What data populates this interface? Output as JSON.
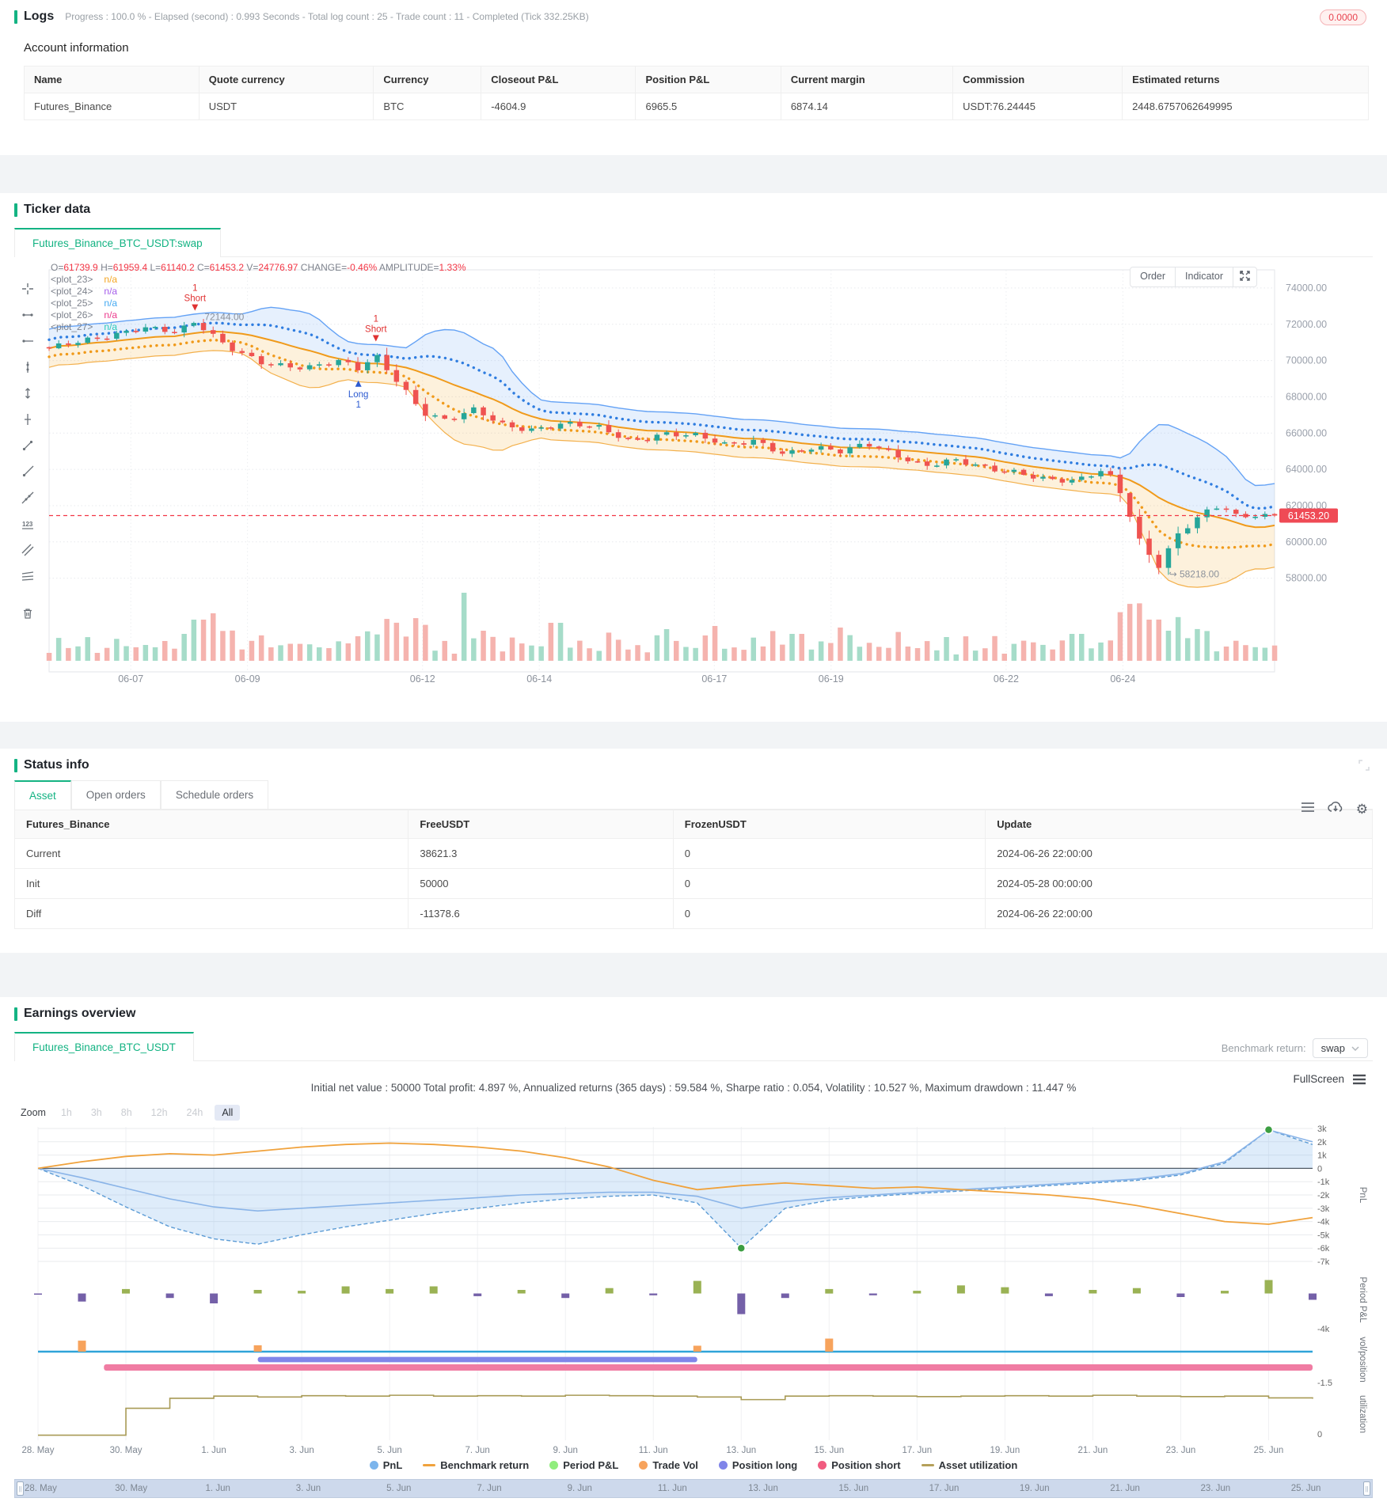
{
  "colors": {
    "accent": "#14b383",
    "red": "#f23645",
    "candle_up": "#26a69a",
    "candle_down": "#ef5350",
    "vol_up": "#a6dcc9",
    "vol_down": "#f5b3ae",
    "band_blue": "#64a2f5",
    "band_blue_fill": "rgba(100,162,245,0.16)",
    "dot_blue": "#2f7de0",
    "band_orange": "#f3b04c",
    "band_orange_fill": "rgba(245,166,35,0.16)",
    "dot_orange": "#f09a1a",
    "center_orange": "#f09a1a"
  },
  "logs": {
    "title": "Logs",
    "progress_text": "Progress : 100.0 % - Elapsed (second) : 0.993  Seconds - Total log count : 25 - Trade count : 11 - Completed (Tick 332.25KB)",
    "badge": "0.0000"
  },
  "account": {
    "title": "Account information",
    "columns": [
      "Name",
      "Quote currency",
      "Currency",
      "Closeout P&L",
      "Position P&L",
      "Current margin",
      "Commission",
      "Estimated returns"
    ],
    "rows": [
      [
        "Futures_Binance",
        "USDT",
        "BTC",
        "-4604.9",
        "6965.5",
        "6874.14",
        "USDT:76.24445",
        "2448.6757062649995"
      ]
    ]
  },
  "ticker": {
    "section_title": "Ticker data",
    "tab": "Futures_Binance_BTC_USDT:swap",
    "ohlc": [
      [
        "O=",
        "61739.9"
      ],
      [
        "H=",
        "61959.4"
      ],
      [
        "L=",
        "61140.2"
      ],
      [
        "C=",
        "61453.2"
      ],
      [
        "V=",
        "24776.97"
      ],
      [
        "CHANGE=",
        "-0.46%"
      ],
      [
        "AMPLITUDE=",
        "1.33%"
      ]
    ],
    "plots": [
      {
        "name": "<plot_23>",
        "value": "n/a",
        "color": "#f5a623"
      },
      {
        "name": "<plot_24>",
        "value": "n/a",
        "color": "#a55eea"
      },
      {
        "name": "<plot_25>",
        "value": "n/a",
        "color": "#45aaf2"
      },
      {
        "name": "<plot_26>",
        "value": "n/a",
        "color": "#eb3b8d"
      },
      {
        "name": "<plot_27>",
        "value": "n/a",
        "color": "#2bcbba"
      }
    ],
    "buttons": [
      "Order",
      "Indicator"
    ],
    "toolbar": [
      "crosshair",
      "trend-point",
      "horizontal-ray",
      "vertical-line",
      "height-ruler",
      "date-range",
      "trend-line",
      "ray-line",
      "extended-line",
      "price-note",
      "parallel-channel",
      "pattern-lines",
      "delete"
    ]
  },
  "status": {
    "section_title": "Status info",
    "tabs": [
      "Asset",
      "Open orders",
      "Schedule orders"
    ],
    "active_tab": "Asset",
    "columns": [
      "Futures_Binance",
      "FreeUSDT",
      "FrozenUSDT",
      "Update"
    ],
    "rows": [
      [
        "Current",
        "38621.3",
        "0",
        "2024-06-26 22:00:00"
      ],
      [
        "Init",
        "50000",
        "0",
        "2024-05-28 00:00:00"
      ],
      [
        "Diff",
        "-11378.6",
        "0",
        "2024-06-26 22:00:00"
      ]
    ]
  },
  "earnings": {
    "section_title": "Earnings overview",
    "tab": "Futures_Binance_BTC_USDT",
    "benchmark_label": "Benchmark return:",
    "benchmark_value": "swap",
    "stats": "Initial net value : 50000 Total profit: 4.897 %, Annualized returns (365 days) : 59.584 %, Sharpe ratio : 0.054, Volatility : 10.527 %, Maximum drawdown : 11.447 %",
    "fullscreen_label": "FullScreen",
    "zoom_label": "Zoom",
    "zoom_options": [
      "1h",
      "3h",
      "8h",
      "12h",
      "24h",
      "All"
    ],
    "zoom_active": "All",
    "legend": [
      {
        "label": "PnL",
        "color": "#7cb5ec",
        "type": "dot"
      },
      {
        "label": "Benchmark return",
        "color": "#f0a23c",
        "type": "line"
      },
      {
        "label": "Period P&L",
        "color": "#90ed7d",
        "type": "dot"
      },
      {
        "label": "Trade Vol",
        "color": "#f7a35c",
        "type": "dot"
      },
      {
        "label": "Position long",
        "color": "#8085e9",
        "type": "dot"
      },
      {
        "label": "Position short",
        "color": "#f15c80",
        "type": "dot"
      },
      {
        "label": "Asset utilization",
        "color": "#b5a05a",
        "type": "line"
      }
    ]
  },
  "chart_data": [
    {
      "id": "ticker-candles",
      "type": "candlestick-with-bands",
      "title": "Futures_Binance_BTC_USDT:swap",
      "y_ticks": [
        74000,
        72000,
        70000,
        68000,
        66000,
        64000,
        62000,
        60000,
        58000
      ],
      "x_ticks": [
        {
          "day": 7,
          "label": "06-07"
        },
        {
          "day": 9,
          "label": "06-09"
        },
        {
          "day": 12,
          "label": "06-12"
        },
        {
          "day": 14,
          "label": "06-14"
        },
        {
          "day": 17,
          "label": "06-17"
        },
        {
          "day": 19,
          "label": "06-19"
        },
        {
          "day": 22,
          "label": "06-22"
        },
        {
          "day": 24,
          "label": "06-24"
        }
      ],
      "day_range": [
        5.6,
        26.6
      ],
      "price_range": [
        75000,
        56500
      ],
      "candle_count": 128,
      "close_anchors": [
        [
          5.6,
          70600
        ],
        [
          6.5,
          71300
        ],
        [
          7.2,
          71900
        ],
        [
          7.8,
          71500
        ],
        [
          8.1,
          72050
        ],
        [
          8.6,
          70900
        ],
        [
          9.3,
          69900
        ],
        [
          10.0,
          69500
        ],
        [
          10.6,
          69950
        ],
        [
          10.9,
          69600
        ],
        [
          11.2,
          70350
        ],
        [
          11.6,
          68800
        ],
        [
          12.0,
          67100
        ],
        [
          12.4,
          66600
        ],
        [
          12.9,
          67300
        ],
        [
          13.4,
          66500
        ],
        [
          13.9,
          66200
        ],
        [
          14.4,
          66450
        ],
        [
          15.0,
          66300
        ],
        [
          15.6,
          65600
        ],
        [
          16.1,
          66000
        ],
        [
          16.7,
          65800
        ],
        [
          17.2,
          65300
        ],
        [
          17.7,
          65650
        ],
        [
          18.2,
          64900
        ],
        [
          18.7,
          65150
        ],
        [
          19.2,
          64900
        ],
        [
          19.6,
          65450
        ],
        [
          20.1,
          64900
        ],
        [
          20.6,
          64200
        ],
        [
          21.1,
          64450
        ],
        [
          21.7,
          64000
        ],
        [
          22.2,
          63900
        ],
        [
          22.7,
          63500
        ],
        [
          23.2,
          63300
        ],
        [
          23.7,
          63950
        ],
        [
          24.0,
          62500
        ],
        [
          24.3,
          60000
        ],
        [
          24.6,
          58700
        ],
        [
          24.9,
          60300
        ],
        [
          25.3,
          61400
        ],
        [
          25.7,
          61950
        ],
        [
          26.0,
          61200
        ],
        [
          26.3,
          61550
        ],
        [
          26.6,
          61453
        ]
      ],
      "wiggle": [
        130,
        90
      ],
      "current_price": 61453.2,
      "current_price_label": "61453.20",
      "low_label": "58218.00",
      "low_day": 24.6,
      "low_price": 58218,
      "high_label": "72144.00",
      "high_day": 8.1,
      "high_price": 72144,
      "markers": [
        {
          "day": 8.1,
          "text": "Short",
          "count": "1",
          "dir": "down"
        },
        {
          "day": 11.2,
          "text": "Short",
          "count": "1",
          "dir": "down"
        },
        {
          "day": 10.9,
          "text": "Long",
          "count": "1",
          "dir": "up"
        }
      ],
      "vol_spikes": [
        [
          8.15,
          52
        ],
        [
          8.45,
          60
        ],
        [
          12.75,
          86
        ],
        [
          13.05,
          38
        ],
        [
          14.3,
          48
        ],
        [
          16.2,
          40
        ],
        [
          17.0,
          44
        ],
        [
          18.4,
          34
        ],
        [
          19.15,
          42
        ],
        [
          21.0,
          30
        ],
        [
          23.2,
          34
        ],
        [
          24.5,
          52
        ],
        [
          24.8,
          38
        ]
      ]
    },
    {
      "id": "earnings-overview",
      "type": "mixed",
      "x_labels": [
        "28. May",
        "30. May",
        "1. Jun",
        "3. Jun",
        "5. Jun",
        "7. Jun",
        "9. Jun",
        "11. Jun",
        "13. Jun",
        "15. Jun",
        "17. Jun",
        "19. Jun",
        "21. Jun",
        "23. Jun",
        "25. Jun"
      ],
      "days": 30,
      "panels": [
        {
          "name": "PnL",
          "ticks": [
            "3k",
            "2k",
            "1k",
            "0",
            "-1k",
            "-2k",
            "-3k",
            "-4k",
            "-5k",
            "-6k",
            "-7k"
          ],
          "range": [
            3,
            -7
          ]
        },
        {
          "name": "Period P&L",
          "ticks": [
            "-4k"
          ],
          "range": [
            2.6,
            -4
          ]
        },
        {
          "name": "vol/position",
          "ticks": [
            "-1.5"
          ],
          "range": [
            0.75,
            -1.5
          ]
        },
        {
          "name": "utilization",
          "ticks": [
            "0"
          ],
          "range": [
            1.05,
            -0.08
          ]
        }
      ],
      "series": {
        "pnl_dashed": [
          0,
          -1.3,
          -2.9,
          -4.4,
          -5.3,
          -5.7,
          -5.0,
          -4.4,
          -3.9,
          -3.4,
          -3.0,
          -2.6,
          -2.3,
          -2.1,
          -2.0,
          -2.6,
          -6.0,
          -3.0,
          -2.4,
          -2.1,
          -1.9,
          -1.7,
          -1.5,
          -1.3,
          -1.1,
          -0.9,
          -0.5,
          0.4,
          2.9,
          1.8
        ],
        "pnl_solid": [
          0,
          -0.7,
          -1.5,
          -2.3,
          -2.9,
          -3.2,
          -3.0,
          -2.8,
          -2.6,
          -2.4,
          -2.2,
          -2.0,
          -1.9,
          -1.8,
          -1.8,
          -2.1,
          -3.0,
          -2.5,
          -2.2,
          -2.0,
          -1.8,
          -1.6,
          -1.4,
          -1.2,
          -1.0,
          -0.8,
          -0.4,
          0.5,
          2.9,
          2.0
        ],
        "benchmark": [
          0,
          0.5,
          0.9,
          1.1,
          1.0,
          1.3,
          1.6,
          1.8,
          1.9,
          1.8,
          1.6,
          1.3,
          0.8,
          0.1,
          -0.9,
          -1.6,
          -1.3,
          -1.1,
          -1.3,
          -1.5,
          -1.4,
          -1.6,
          -1.8,
          -2.0,
          -2.3,
          -2.8,
          -3.4,
          -4.0,
          -4.2,
          -3.7
        ],
        "period_pl": [
          -0.1,
          -0.9,
          0.5,
          -0.5,
          -1.1,
          0.4,
          0.3,
          0.8,
          0.5,
          0.8,
          -0.3,
          0.4,
          -0.5,
          0.6,
          -0.2,
          1.4,
          -2.3,
          -0.5,
          0.5,
          -0.2,
          0.3,
          0.9,
          0.7,
          -0.3,
          0.4,
          0.6,
          -0.4,
          0.3,
          1.5,
          -0.7
        ],
        "trade_vol": [
          0,
          0.52,
          0,
          0,
          0,
          0.3,
          0,
          0,
          0,
          0,
          0,
          0,
          0,
          0,
          0,
          0.28,
          0,
          0,
          0.62,
          0,
          0,
          0,
          0,
          0,
          0,
          0,
          0,
          0,
          0,
          0
        ],
        "position_long": {
          "from": 5,
          "to": 15,
          "y": [
            -0.25,
            -0.5
          ]
        },
        "position_short": {
          "from": 1.5,
          "to": 29,
          "y": [
            -0.6,
            -0.9
          ]
        },
        "baseline_y": 0,
        "utilization": [
          0,
          0,
          0.62,
          0.85,
          0.9,
          0.88,
          0.91,
          0.9,
          0.92,
          0.9,
          0.91,
          0.9,
          0.92,
          0.91,
          0.9,
          0.88,
          0.82,
          0.9,
          0.91,
          0.9,
          0.89,
          0.9,
          0.91,
          0.9,
          0.92,
          0.9,
          0.89,
          0.9,
          0.86,
          0.84
        ],
        "extreme_dots": [
          [
            16,
            -6.0
          ],
          [
            28,
            2.9
          ]
        ]
      }
    }
  ]
}
